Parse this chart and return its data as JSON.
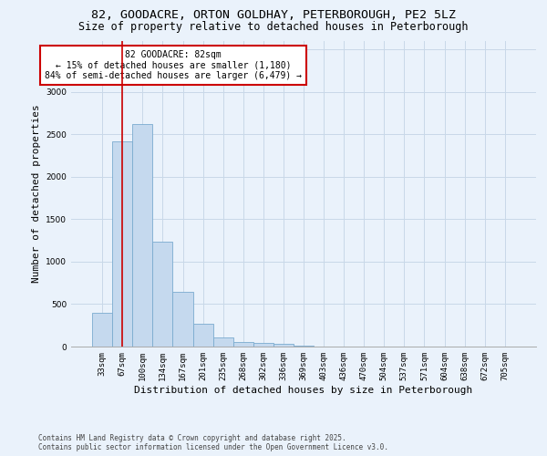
{
  "title1": "82, GOODACRE, ORTON GOLDHAY, PETERBOROUGH, PE2 5LZ",
  "title2": "Size of property relative to detached houses in Peterborough",
  "xlabel": "Distribution of detached houses by size in Peterborough",
  "ylabel": "Number of detached properties",
  "bar_values": [
    400,
    2420,
    2620,
    1240,
    640,
    265,
    110,
    55,
    40,
    30,
    15,
    0,
    0,
    0,
    0,
    0,
    0,
    0,
    0,
    0,
    0
  ],
  "categories": [
    "33sqm",
    "67sqm",
    "100sqm",
    "134sqm",
    "167sqm",
    "201sqm",
    "235sqm",
    "268sqm",
    "302sqm",
    "336sqm",
    "369sqm",
    "403sqm",
    "436sqm",
    "470sqm",
    "504sqm",
    "537sqm",
    "571sqm",
    "604sqm",
    "638sqm",
    "672sqm",
    "705sqm"
  ],
  "bar_color": "#c5d9ee",
  "bar_edge_color": "#7aabcf",
  "property_line_x": 1.0,
  "property_label": "82 GOODACRE: 82sqm",
  "annotation_line1": "← 15% of detached houses are smaller (1,180)",
  "annotation_line2": "84% of semi-detached houses are larger (6,479) →",
  "annotation_box_color": "#ffffff",
  "annotation_box_edge": "#cc0000",
  "vline_color": "#cc0000",
  "ylim": [
    0,
    3600
  ],
  "yticks": [
    0,
    500,
    1000,
    1500,
    2000,
    2500,
    3000,
    3500
  ],
  "grid_color": "#c8d8e8",
  "bg_color": "#eaf2fb",
  "footer1": "Contains HM Land Registry data © Crown copyright and database right 2025.",
  "footer2": "Contains public sector information licensed under the Open Government Licence v3.0.",
  "title_fontsize": 9.5,
  "subtitle_fontsize": 8.5,
  "tick_fontsize": 6.5,
  "ylabel_fontsize": 8,
  "xlabel_fontsize": 8,
  "annotation_fontsize": 7,
  "footer_fontsize": 5.5
}
